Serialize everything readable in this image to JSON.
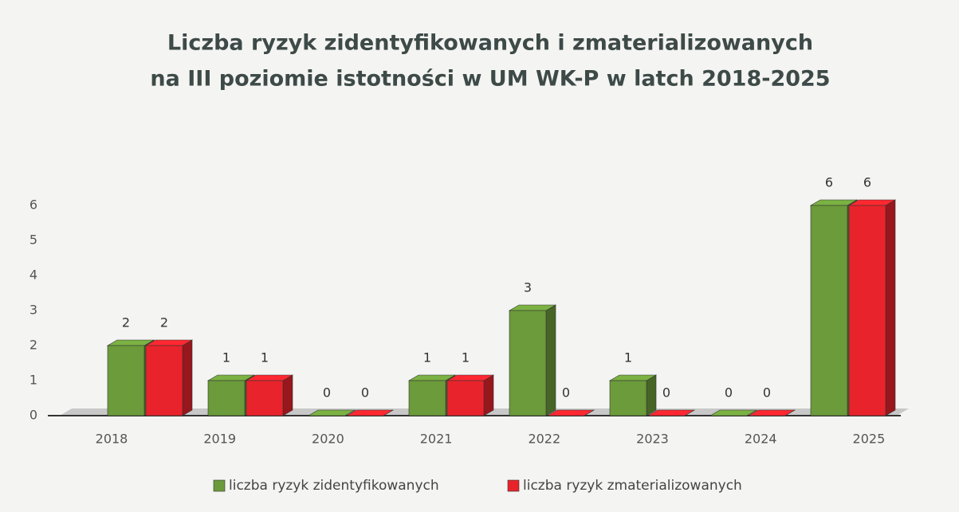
{
  "chart_data": {
    "type": "bar3d",
    "title": [
      "Liczba ryzyk zidentyfikowanych i zmaterializowanych",
      "na III poziomie istotności w UM WK-P w latch 2018-2025"
    ],
    "categories": [
      "2018",
      "2019",
      "2020",
      "2021",
      "2022",
      "2023",
      "2024",
      "2025"
    ],
    "series": [
      {
        "name": "liczba ryzyk zidentyfikowanych",
        "color": "#6b9b3a",
        "values": [
          2,
          1,
          0,
          1,
          3,
          1,
          0,
          6
        ]
      },
      {
        "name": "liczba ryzyk zmaterializowanych",
        "color": "#e8232b",
        "values": [
          2,
          1,
          0,
          1,
          0,
          0,
          0,
          6
        ]
      }
    ],
    "ylim": [
      0,
      6
    ],
    "yticks": [
      0,
      1,
      2,
      3,
      4,
      5,
      6
    ],
    "grid": false,
    "legend": "bottom"
  }
}
